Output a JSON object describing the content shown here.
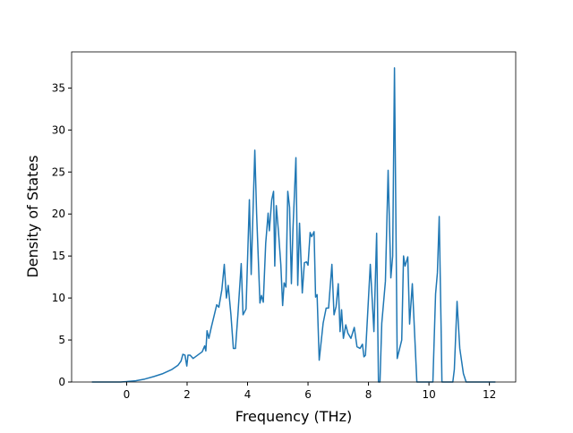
{
  "chart_data": {
    "type": "line",
    "xlabel": "Frequency (THz)",
    "ylabel": "Density of States",
    "x": [
      -1.15,
      -0.5,
      -0.2,
      0,
      0.3,
      0.6,
      0.9,
      1.2,
      1.5,
      1.7,
      1.8,
      1.86,
      1.93,
      1.99,
      2.03,
      2.1,
      2.2,
      2.35,
      2.5,
      2.58,
      2.62,
      2.66,
      2.72,
      2.8,
      2.9,
      2.98,
      3.05,
      3.15,
      3.23,
      3.3,
      3.36,
      3.45,
      3.53,
      3.6,
      3.68,
      3.79,
      3.85,
      3.95,
      4.06,
      4.12,
      4.24,
      4.3,
      4.41,
      4.46,
      4.52,
      4.6,
      4.68,
      4.72,
      4.8,
      4.86,
      4.9,
      4.95,
      5.02,
      5.1,
      5.16,
      5.21,
      5.27,
      5.33,
      5.39,
      5.45,
      5.5,
      5.6,
      5.66,
      5.72,
      5.81,
      5.88,
      5.95,
      6.0,
      6.07,
      6.12,
      6.2,
      6.25,
      6.3,
      6.37,
      6.5,
      6.6,
      6.68,
      6.79,
      6.86,
      6.93,
      7.0,
      7.06,
      7.11,
      7.17,
      7.25,
      7.32,
      7.42,
      7.53,
      7.62,
      7.72,
      7.8,
      7.85,
      7.9,
      8.06,
      8.18,
      8.27,
      8.33,
      8.38,
      8.44,
      8.56,
      8.65,
      8.74,
      8.8,
      8.86,
      8.95,
      9.1,
      9.16,
      9.21,
      9.3,
      9.36,
      9.45,
      9.6,
      10.13,
      10.22,
      10.28,
      10.34,
      10.4,
      10.43,
      10.79,
      10.84,
      10.93,
      11.02,
      11.14,
      11.23,
      12.2
    ],
    "series": [
      {
        "color": "#1f77b4",
        "values": [
          0,
          0,
          0,
          0.05,
          0.15,
          0.35,
          0.65,
          1.0,
          1.5,
          2.0,
          2.5,
          3.3,
          3.2,
          1.9,
          3.2,
          3.2,
          2.8,
          3.2,
          3.6,
          4.3,
          3.7,
          6.1,
          5.2,
          6.5,
          8.0,
          9.2,
          8.9,
          11.0,
          14.0,
          10.0,
          11.5,
          8.0,
          4.0,
          4.0,
          8.0,
          14.1,
          8.0,
          8.7,
          21.7,
          12.8,
          27.6,
          20.0,
          9.4,
          10.3,
          9.5,
          16.5,
          20.1,
          18.0,
          21.7,
          22.7,
          13.8,
          21.0,
          18.0,
          14.0,
          9.1,
          11.8,
          11.3,
          22.7,
          20.8,
          11.7,
          18.0,
          26.7,
          11.5,
          18.9,
          10.6,
          14.2,
          14.3,
          13.9,
          17.8,
          17.3,
          17.9,
          10.1,
          10.4,
          2.6,
          7.0,
          8.8,
          8.8,
          14.0,
          8.0,
          9.0,
          11.7,
          6.0,
          8.6,
          5.2,
          6.8,
          5.8,
          5.2,
          6.5,
          4.2,
          4.0,
          4.5,
          3.0,
          3.2,
          14.0,
          6.0,
          17.7,
          0,
          0,
          7.0,
          12.0,
          25.2,
          12.4,
          15.0,
          37.4,
          2.8,
          5.0,
          15.0,
          13.8,
          14.9,
          6.9,
          11.7,
          0,
          0,
          10.5,
          13.0,
          19.7,
          7.0,
          0,
          0,
          1.5,
          9.6,
          4.0,
          1.0,
          0,
          0
        ]
      }
    ],
    "xlim": [
      -1.82,
      12.87
    ],
    "ylim": [
      0,
      39.3
    ],
    "xticks": [
      0,
      2,
      4,
      6,
      8,
      10,
      12
    ],
    "yticks": [
      0,
      5,
      10,
      15,
      20,
      25,
      30,
      35
    ]
  }
}
